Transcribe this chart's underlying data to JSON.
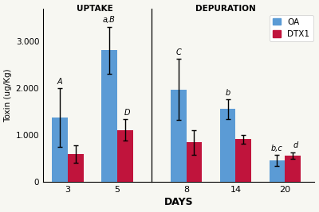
{
  "days": [
    "3",
    "5",
    "8",
    "14",
    "20"
  ],
  "oa_values": [
    1380,
    2820,
    1980,
    1560,
    460
  ],
  "oa_errors": [
    620,
    500,
    650,
    210,
    120
  ],
  "dtx1_values": [
    600,
    1110,
    850,
    920,
    570
  ],
  "dtx1_errors": [
    190,
    230,
    260,
    95,
    70
  ],
  "oa_color": "#5B9BD5",
  "dtx1_color": "#C0143C",
  "bar_width": 0.32,
  "ylabel": "Toxin (ug/Kg)",
  "xlabel": "DAYS",
  "ylim": [
    0,
    3700
  ],
  "yticks": [
    0,
    1000,
    2000,
    3000
  ],
  "ytick_labels": [
    "0",
    "1.000",
    "2.000",
    "3.000"
  ],
  "uptake_label": "UPTAKE",
  "depuration_label": "DEPURATION",
  "oa_annotations": [
    "A",
    "a,B",
    "C",
    "b",
    "b,c"
  ],
  "dtx1_annotations": [
    "",
    "D",
    "",
    "",
    "d"
  ],
  "legend_labels": [
    "OA",
    "DTX1"
  ],
  "background_color": "#f7f7f2"
}
